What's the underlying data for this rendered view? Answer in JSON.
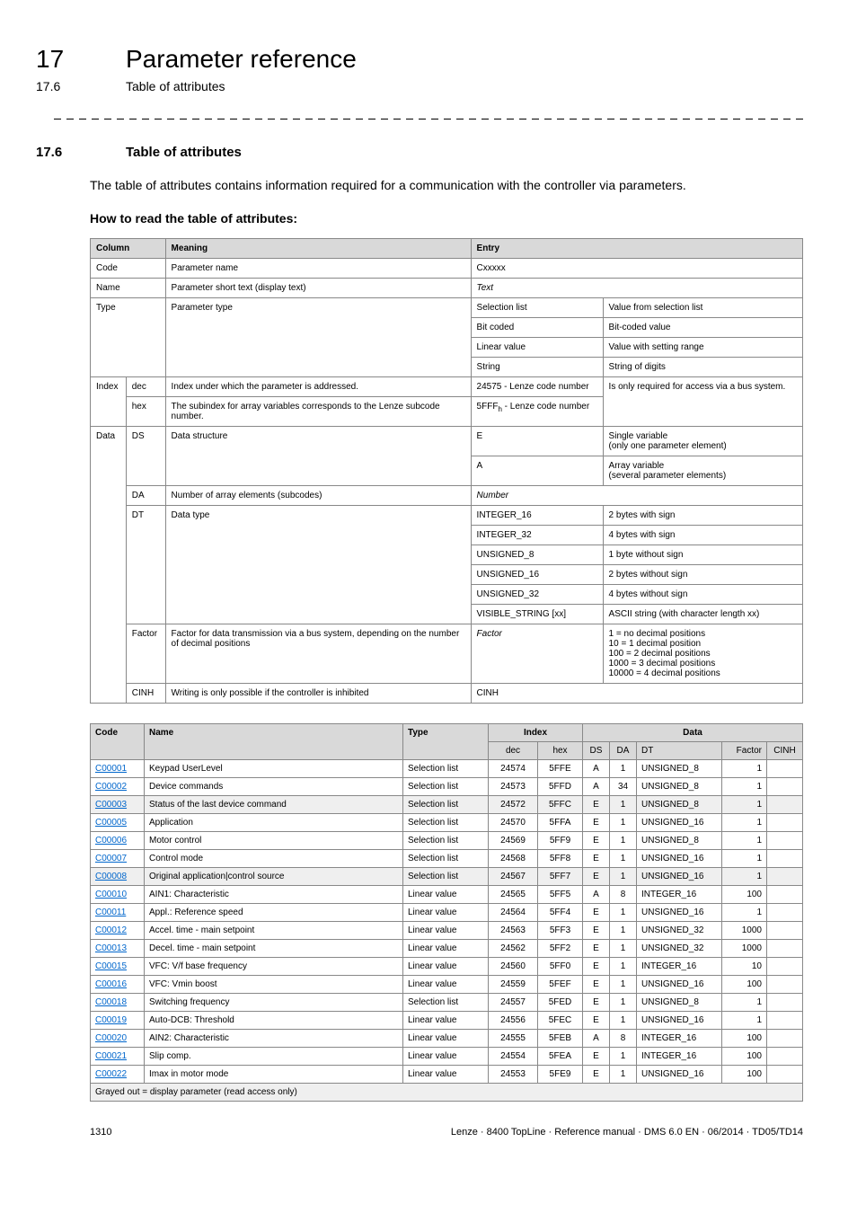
{
  "chapter": {
    "number": "17",
    "title": "Parameter reference"
  },
  "section_sub": {
    "number": "17.6",
    "title": "Table of attributes"
  },
  "section": {
    "number": "17.6",
    "title": "Table of attributes"
  },
  "intro": "The table of attributes contains information required for a communication with the controller via parameters.",
  "howto_heading": "How to read the table of attributes:",
  "t1_headers": {
    "column": "Column",
    "meaning": "Meaning",
    "entry": "Entry"
  },
  "t1": {
    "code": {
      "label": "Code",
      "meaning": "Parameter name",
      "entry": "Cxxxxx"
    },
    "name": {
      "label": "Name",
      "meaning": "Parameter short text (display text)",
      "entry": "Text"
    },
    "type": {
      "label": "Type",
      "meaning": "Parameter type",
      "rows": [
        [
          "Selection list",
          "Value from selection list"
        ],
        [
          "Bit coded",
          "Bit-coded value"
        ],
        [
          "Linear value",
          "Value with setting range"
        ],
        [
          "String",
          "String of digits"
        ]
      ]
    },
    "index": {
      "label": "Index",
      "dec_label": "dec",
      "dec_meaning": "Index under which the parameter is addressed.",
      "dec_entry": "24575 - Lenze code number",
      "hex_label": "hex",
      "hex_meaning": "The subindex for array variables corresponds to the Lenze subcode number.",
      "hex_entry_prefix": "5FFF",
      "hex_entry_suffix": " - Lenze code number",
      "entry_desc": "Is only required for access via a bus system."
    },
    "data": {
      "label": "Data",
      "ds_label": "DS",
      "ds_meaning": "Data structure",
      "ds_rows": [
        [
          "E",
          "Single variable\n(only one parameter element)"
        ],
        [
          "A",
          "Array variable\n(several parameter elements)"
        ]
      ],
      "da_label": "DA",
      "da_meaning": "Number of array elements (subcodes)",
      "da_entry": "Number",
      "dt_label": "DT",
      "dt_meaning": "Data type",
      "dt_rows": [
        [
          "INTEGER_16",
          "2 bytes with sign"
        ],
        [
          "INTEGER_32",
          "4 bytes with sign"
        ],
        [
          "UNSIGNED_8",
          "1 byte without sign"
        ],
        [
          "UNSIGNED_16",
          "2 bytes without sign"
        ],
        [
          "UNSIGNED_32",
          "4 bytes without sign"
        ],
        [
          "VISIBLE_STRING [xx]",
          "ASCII string (with character length xx)"
        ]
      ],
      "factor_label": "Factor",
      "factor_meaning": "Factor for data transmission via a bus system, depending on the number of decimal positions",
      "factor_entry": "Factor",
      "factor_desc": "1 = no decimal positions\n10 = 1 decimal position\n100 = 2 decimal positions\n1000 = 3 decimal positions\n10000 = 4 decimal positions",
      "cinh_label": "CINH",
      "cinh_meaning": "Writing is only possible if the controller is inhibited",
      "cinh_entry": "CINH"
    }
  },
  "t2_headers": {
    "code": "Code",
    "name": "Name",
    "type": "Type",
    "index": "Index",
    "dec": "dec",
    "hex": "hex",
    "data": "Data",
    "ds": "DS",
    "da": "DA",
    "dt": "DT",
    "factor": "Factor",
    "cinh": "CINH"
  },
  "t2_rows": [
    {
      "code": "C00001",
      "name": "Keypad UserLevel",
      "type": "Selection list",
      "dec": "24574",
      "hex": "5FFE",
      "ds": "A",
      "da": "1",
      "dt": "UNSIGNED_8",
      "factor": "1",
      "cinh": "",
      "shaded": false
    },
    {
      "code": "C00002",
      "name": "Device commands",
      "type": "Selection list",
      "dec": "24573",
      "hex": "5FFD",
      "ds": "A",
      "da": "34",
      "dt": "UNSIGNED_8",
      "factor": "1",
      "cinh": "",
      "shaded": false
    },
    {
      "code": "C00003",
      "name": "Status of the last device command",
      "type": "Selection list",
      "dec": "24572",
      "hex": "5FFC",
      "ds": "E",
      "da": "1",
      "dt": "UNSIGNED_8",
      "factor": "1",
      "cinh": "",
      "shaded": true
    },
    {
      "code": "C00005",
      "name": "Application",
      "type": "Selection list",
      "dec": "24570",
      "hex": "5FFA",
      "ds": "E",
      "da": "1",
      "dt": "UNSIGNED_16",
      "factor": "1",
      "cinh": "",
      "shaded": false
    },
    {
      "code": "C00006",
      "name": "Motor control",
      "type": "Selection list",
      "dec": "24569",
      "hex": "5FF9",
      "ds": "E",
      "da": "1",
      "dt": "UNSIGNED_8",
      "factor": "1",
      "cinh": "",
      "shaded": false
    },
    {
      "code": "C00007",
      "name": "Control mode",
      "type": "Selection list",
      "dec": "24568",
      "hex": "5FF8",
      "ds": "E",
      "da": "1",
      "dt": "UNSIGNED_16",
      "factor": "1",
      "cinh": "",
      "shaded": false
    },
    {
      "code": "C00008",
      "name": "Original application|control source",
      "type": "Selection list",
      "dec": "24567",
      "hex": "5FF7",
      "ds": "E",
      "da": "1",
      "dt": "UNSIGNED_16",
      "factor": "1",
      "cinh": "",
      "shaded": true
    },
    {
      "code": "C00010",
      "name": "AIN1: Characteristic",
      "type": "Linear value",
      "dec": "24565",
      "hex": "5FF5",
      "ds": "A",
      "da": "8",
      "dt": "INTEGER_16",
      "factor": "100",
      "cinh": "",
      "shaded": false
    },
    {
      "code": "C00011",
      "name": "Appl.: Reference speed",
      "type": "Linear value",
      "dec": "24564",
      "hex": "5FF4",
      "ds": "E",
      "da": "1",
      "dt": "UNSIGNED_16",
      "factor": "1",
      "cinh": "",
      "shaded": false
    },
    {
      "code": "C00012",
      "name": "Accel. time - main setpoint",
      "type": "Linear value",
      "dec": "24563",
      "hex": "5FF3",
      "ds": "E",
      "da": "1",
      "dt": "UNSIGNED_32",
      "factor": "1000",
      "cinh": "",
      "shaded": false
    },
    {
      "code": "C00013",
      "name": "Decel. time - main setpoint",
      "type": "Linear value",
      "dec": "24562",
      "hex": "5FF2",
      "ds": "E",
      "da": "1",
      "dt": "UNSIGNED_32",
      "factor": "1000",
      "cinh": "",
      "shaded": false
    },
    {
      "code": "C00015",
      "name": "VFC: V/f base frequency",
      "type": "Linear value",
      "dec": "24560",
      "hex": "5FF0",
      "ds": "E",
      "da": "1",
      "dt": "INTEGER_16",
      "factor": "10",
      "cinh": "",
      "shaded": false
    },
    {
      "code": "C00016",
      "name": "VFC: Vmin boost",
      "type": "Linear value",
      "dec": "24559",
      "hex": "5FEF",
      "ds": "E",
      "da": "1",
      "dt": "UNSIGNED_16",
      "factor": "100",
      "cinh": "",
      "shaded": false
    },
    {
      "code": "C00018",
      "name": "Switching frequency",
      "type": "Selection list",
      "dec": "24557",
      "hex": "5FED",
      "ds": "E",
      "da": "1",
      "dt": "UNSIGNED_8",
      "factor": "1",
      "cinh": "",
      "shaded": false
    },
    {
      "code": "C00019",
      "name": "Auto-DCB: Threshold",
      "type": "Linear value",
      "dec": "24556",
      "hex": "5FEC",
      "ds": "E",
      "da": "1",
      "dt": "UNSIGNED_16",
      "factor": "1",
      "cinh": "",
      "shaded": false
    },
    {
      "code": "C00020",
      "name": "AIN2: Characteristic",
      "type": "Linear value",
      "dec": "24555",
      "hex": "5FEB",
      "ds": "A",
      "da": "8",
      "dt": "INTEGER_16",
      "factor": "100",
      "cinh": "",
      "shaded": false
    },
    {
      "code": "C00021",
      "name": "Slip comp.",
      "type": "Linear value",
      "dec": "24554",
      "hex": "5FEA",
      "ds": "E",
      "da": "1",
      "dt": "INTEGER_16",
      "factor": "100",
      "cinh": "",
      "shaded": false
    },
    {
      "code": "C00022",
      "name": "Imax in motor mode",
      "type": "Linear value",
      "dec": "24553",
      "hex": "5FE9",
      "ds": "E",
      "da": "1",
      "dt": "UNSIGNED_16",
      "factor": "100",
      "cinh": "",
      "shaded": false
    }
  ],
  "t2_footer": "Grayed out = display parameter (read access only)",
  "footer": {
    "page": "1310",
    "right": "Lenze · 8400 TopLine · Reference manual · DMS 6.0 EN · 06/2014 · TD05/TD14"
  }
}
